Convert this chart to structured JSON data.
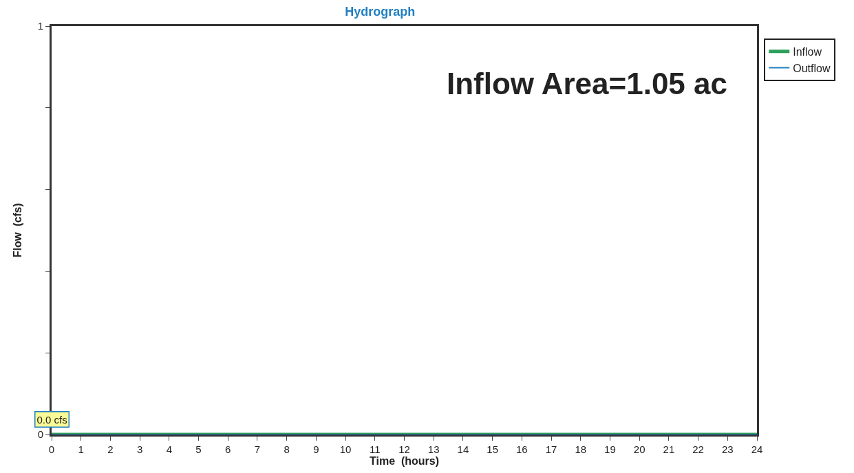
{
  "chart_data": {
    "type": "line",
    "title": "Hydrograph",
    "xlabel": "Time  (hours)",
    "ylabel": "Flow  (cfs)",
    "x": [
      0,
      24
    ],
    "series": [
      {
        "name": "Inflow",
        "color": "#2ca05a",
        "values": [
          0,
          0
        ]
      },
      {
        "name": "Outflow",
        "color": "#1f7fc0",
        "values": [
          0,
          0
        ]
      }
    ],
    "xlim": [
      0,
      24
    ],
    "xticks": [
      0,
      1,
      2,
      3,
      4,
      5,
      6,
      7,
      8,
      9,
      10,
      11,
      12,
      13,
      14,
      15,
      16,
      17,
      18,
      19,
      20,
      21,
      22,
      23,
      24
    ],
    "ylim": [
      0,
      1
    ],
    "yticks": [
      0,
      {
        "value": 0.2,
        "label": null
      },
      {
        "value": 0.4,
        "label": null
      },
      {
        "value": 0.6,
        "label": null
      },
      {
        "value": 0.8,
        "label": null
      },
      1
    ],
    "annotations": [
      {
        "text": "0.0 cfs",
        "x": 0,
        "y": 0
      },
      "Inflow Area=1.05 ac"
    ],
    "grid": false,
    "legend": "top right",
    "marker": "none",
    "line_style": "solid"
  }
}
